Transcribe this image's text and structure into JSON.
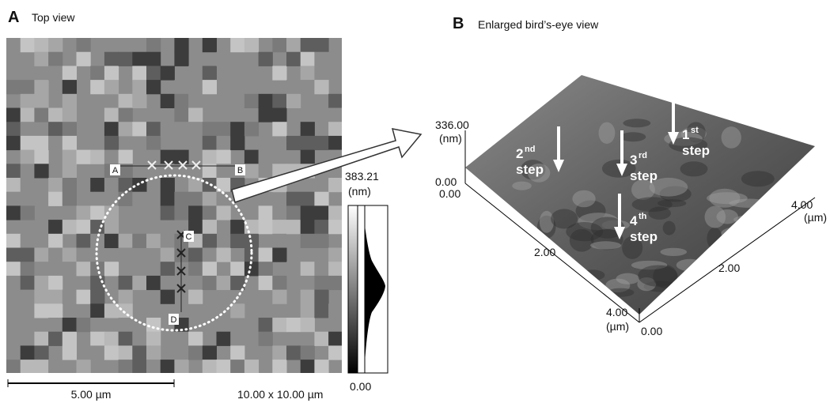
{
  "panel_a": {
    "letter": "A",
    "title": "Top view",
    "scale_max": "383.21",
    "scale_unit": "(nm)",
    "scale_min": "0.00",
    "scale_bar": "5.00 µm",
    "size": "10.00 x 10.00 µm",
    "markers": [
      "A",
      "B",
      "C",
      "D"
    ]
  },
  "panel_b": {
    "letter": "B",
    "title": "Enlarged bird’s-eye view",
    "z_max": "336.00",
    "z_unit": "(nm)",
    "z_min": "0.00",
    "left_axis": {
      "ticks": [
        "0.00",
        "2.00",
        "4.00"
      ],
      "unit": "(µm)"
    },
    "right_axis": {
      "ticks": [
        "0.00",
        "2.00",
        "4.00"
      ],
      "unit": "(µm)"
    },
    "steps": [
      {
        "ordinal": "1",
        "suffix": "st",
        "word": "step"
      },
      {
        "ordinal": "2",
        "suffix": "nd",
        "word": "step"
      },
      {
        "ordinal": "3",
        "suffix": "rd",
        "word": "step"
      },
      {
        "ordinal": "4",
        "suffix": "th",
        "word": "step"
      }
    ]
  }
}
